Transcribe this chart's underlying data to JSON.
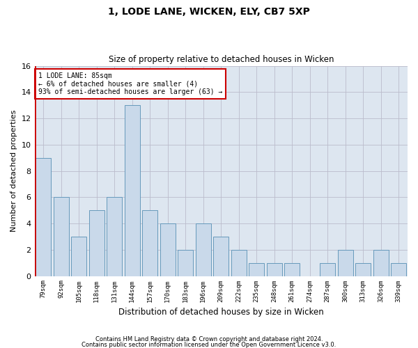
{
  "title1": "1, LODE LANE, WICKEN, ELY, CB7 5XP",
  "title2": "Size of property relative to detached houses in Wicken",
  "xlabel": "Distribution of detached houses by size in Wicken",
  "ylabel": "Number of detached properties",
  "categories": [
    "79sqm",
    "92sqm",
    "105sqm",
    "118sqm",
    "131sqm",
    "144sqm",
    "157sqm",
    "170sqm",
    "183sqm",
    "196sqm",
    "209sqm",
    "222sqm",
    "235sqm",
    "248sqm",
    "261sqm",
    "274sqm",
    "287sqm",
    "300sqm",
    "313sqm",
    "326sqm",
    "339sqm"
  ],
  "values": [
    9,
    6,
    3,
    5,
    6,
    13,
    5,
    4,
    2,
    4,
    3,
    2,
    1,
    1,
    1,
    0,
    1,
    2,
    1,
    2,
    1
  ],
  "bar_color": "#c9d9ea",
  "bar_edge_color": "#6699bb",
  "annotation_box_text": "1 LODE LANE: 85sqm\n← 6% of detached houses are smaller (4)\n93% of semi-detached houses are larger (63) →",
  "annotation_box_color": "#ffffff",
  "annotation_box_edge_color": "#cc0000",
  "highlight_line_color": "#cc0000",
  "ylim": [
    0,
    16
  ],
  "yticks": [
    0,
    2,
    4,
    6,
    8,
    10,
    12,
    14,
    16
  ],
  "grid_color": "#bbbbcc",
  "bg_color": "#dde6f0",
  "footer1": "Contains HM Land Registry data © Crown copyright and database right 2024.",
  "footer2": "Contains public sector information licensed under the Open Government Licence v3.0."
}
